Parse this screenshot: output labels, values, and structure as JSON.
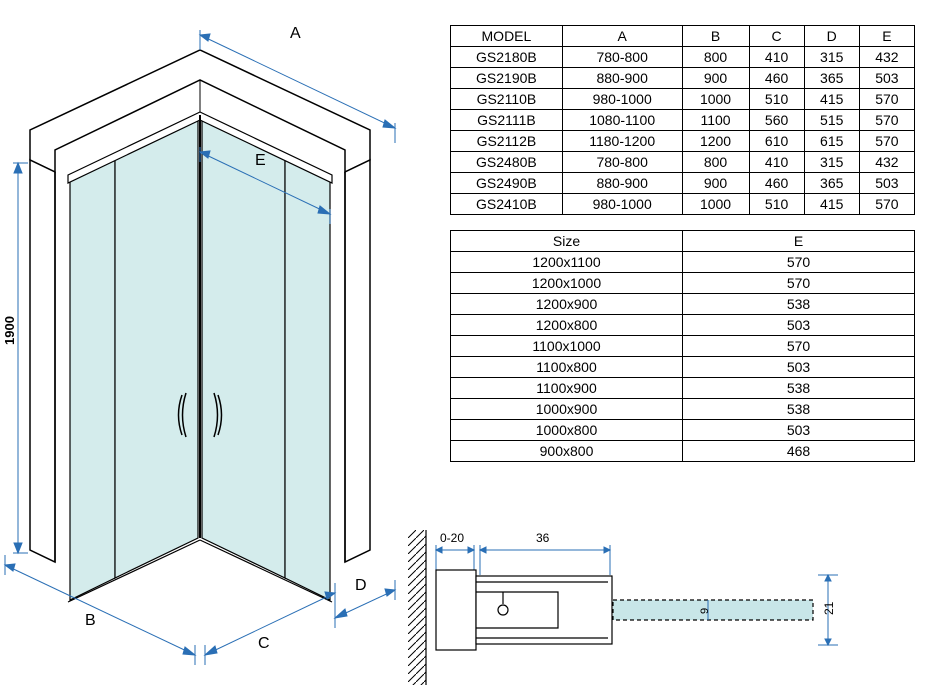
{
  "diagram": {
    "height_label": "1900",
    "dim_labels": {
      "A": "A",
      "B": "B",
      "C": "C",
      "D": "D",
      "E": "E"
    },
    "colors": {
      "glass_fill": "#d4ecec",
      "line": "#000000",
      "dim_line": "#2a6fb5",
      "profile_fill": "#c8e6e8"
    }
  },
  "spec_table": {
    "headers": [
      "MODEL",
      "A",
      "B",
      "C",
      "D",
      "E"
    ],
    "rows": [
      [
        "GS2180B",
        "780-800",
        "800",
        "410",
        "315",
        "432"
      ],
      [
        "GS2190B",
        "880-900",
        "900",
        "460",
        "365",
        "503"
      ],
      [
        "GS2110B",
        "980-1000",
        "1000",
        "510",
        "415",
        "570"
      ],
      [
        "GS2111B",
        "1080-1100",
        "1100",
        "560",
        "515",
        "570"
      ],
      [
        "GS2112B",
        "1180-1200",
        "1200",
        "610",
        "615",
        "570"
      ],
      [
        "GS2480B",
        "780-800",
        "800",
        "410",
        "315",
        "432"
      ],
      [
        "GS2490B",
        "880-900",
        "900",
        "460",
        "365",
        "503"
      ],
      [
        "GS2410B",
        "980-1000",
        "1000",
        "510",
        "415",
        "570"
      ]
    ]
  },
  "size_table": {
    "headers": [
      "Size",
      "E"
    ],
    "rows": [
      [
        "1200x1100",
        "570"
      ],
      [
        "1200x1000",
        "570"
      ],
      [
        "1200x900",
        "538"
      ],
      [
        "1200x800",
        "503"
      ],
      [
        "1100x1000",
        "570"
      ],
      [
        "1100x800",
        "503"
      ],
      [
        "1100x900",
        "538"
      ],
      [
        "1000x900",
        "538"
      ],
      [
        "1000x800",
        "503"
      ],
      [
        "900x800",
        "468"
      ]
    ]
  },
  "profile": {
    "gap_label": "0-20",
    "width_label": "36",
    "height_label": "21",
    "inner_label": "9"
  }
}
